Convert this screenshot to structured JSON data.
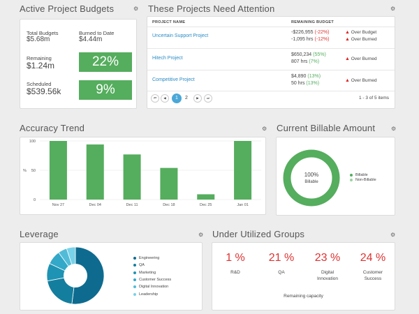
{
  "colors": {
    "green": "#55ad5e",
    "red": "#dd3333",
    "link": "#2a8bc4",
    "pager_active": "#4aa8d8"
  },
  "budgets": {
    "title": "Active Project Budgets",
    "total_label": "Total Budgets",
    "total_value": "$5.68m",
    "burned_label": "Burned to Date",
    "burned_value": "$4.44m",
    "remaining_label": "Remaining",
    "remaining_value": "$1.24m",
    "remaining_pct": "22%",
    "scheduled_label": "Scheduled",
    "scheduled_value": "$539.56k",
    "scheduled_pct": "9%"
  },
  "attention": {
    "title": "These Projects Need Attention",
    "col_project": "PROJECT NAME",
    "col_budget": "REMAINING BUDGET",
    "rows": [
      {
        "name": "Uncertain Support Project",
        "line1": "-$226,955",
        "line1_pct": "(-22%)",
        "line2": "-1,095 hrs",
        "line2_pct": "(-12%)",
        "status1": "Over Budget",
        "status2": "Over Burned"
      },
      {
        "name": "Hitech Project",
        "line1": "$650,234",
        "line1_pct": "(55%)",
        "line2": "807 hrs",
        "line2_pct": "(7%)",
        "status1": "Over Burned",
        "status2": ""
      },
      {
        "name": "Competitive Project",
        "line1": "$4,890",
        "line1_pct": "(13%)",
        "line2": "50 hrs",
        "line2_pct": "(13%)",
        "status1": "Over Burned",
        "status2": ""
      }
    ],
    "pager": {
      "first": "⏮",
      "prev": "◀",
      "current": "1",
      "page2": "2",
      "next": "▶",
      "last": "⏭",
      "summary": "1 - 3 of 5 items"
    }
  },
  "accuracy": {
    "title": "Accuracy Trend",
    "y_axis_label": "%"
  },
  "chart_data": [
    {
      "type": "bar",
      "title": "Accuracy Trend",
      "categories": [
        "Nov 27",
        "Dec 04",
        "Dec 11",
        "Dec 18",
        "Dec 25",
        "Jan 01"
      ],
      "values": [
        100,
        94,
        77,
        54,
        9,
        100
      ],
      "ylabel": "%",
      "ylim": [
        0,
        100
      ],
      "yticks": [
        "0",
        "50",
        "100"
      ],
      "color": "#55ad5e"
    },
    {
      "type": "pie",
      "title": "Current Billable Amount",
      "labels": [
        "Billable",
        "Non-Billable"
      ],
      "values": [
        100,
        0
      ],
      "colors": [
        "#55ad5e",
        "#9ad39f"
      ]
    },
    {
      "type": "pie",
      "title": "Leverage",
      "labels": [
        "Engineering",
        "QA",
        "Marketing",
        "Customer Success",
        "Digital Innovation",
        "Leadership"
      ],
      "values": [
        52,
        20,
        10,
        8,
        5,
        5
      ],
      "colors": [
        "#0e6b8f",
        "#147e9e",
        "#1f93b3",
        "#33a8c8",
        "#52bcd8",
        "#78d2e9"
      ]
    }
  ],
  "billable": {
    "title": "Current Billable Amount",
    "center_pct": "100%",
    "center_label": "Billable",
    "legend": [
      "Billable",
      "Non-Billable"
    ]
  },
  "leverage": {
    "title": "Leverage",
    "legend": [
      "Engineering",
      "QA",
      "Marketing",
      "Customer Success",
      "Digital Innovation",
      "Leadership"
    ]
  },
  "underutilized": {
    "title": "Under Utilized Groups",
    "groups": [
      {
        "pct": "1 %",
        "name": "R&D"
      },
      {
        "pct": "21 %",
        "name": "QA"
      },
      {
        "pct": "23 %",
        "name": "Digital Innovation"
      },
      {
        "pct": "24 %",
        "name": "Customer Success"
      }
    ],
    "footer": "Remaining capacity"
  },
  "icons": {
    "settings": "gear-icon",
    "warning": "warning-icon"
  }
}
